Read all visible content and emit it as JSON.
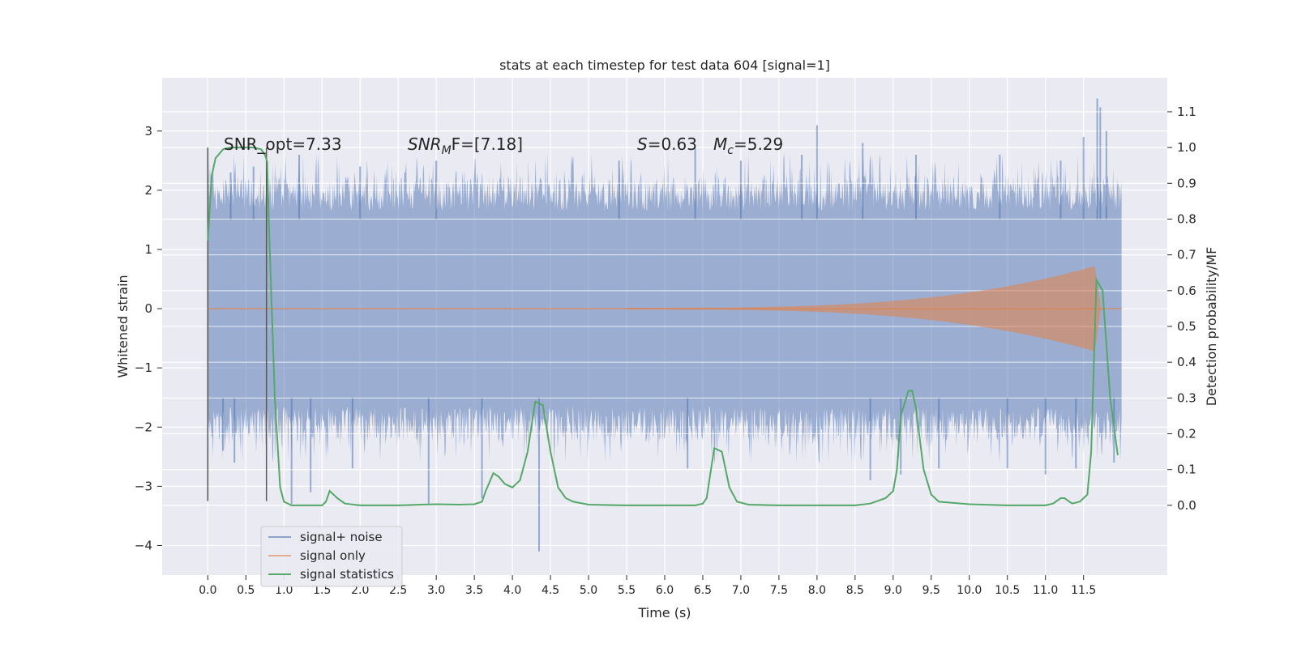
{
  "chart_data": {
    "type": "line",
    "title": "stats at each timestep for test data 604 [signal=1]",
    "xlabel": "Time (s)",
    "ylabel_left": "Whitened strain",
    "ylabel_right": "Detection probability/MF",
    "xlim": [
      -0.6,
      12.6
    ],
    "ylim_left": [
      -4.5,
      3.9
    ],
    "ylim_right": [
      -0.195,
      1.195
    ],
    "x_ticks": [
      "0.0",
      "0.5",
      "1.0",
      "1.5",
      "2.0",
      "2.5",
      "3.0",
      "3.5",
      "4.0",
      "4.5",
      "5.0",
      "5.5",
      "6.0",
      "6.5",
      "7.0",
      "7.5",
      "8.0",
      "8.5",
      "9.0",
      "9.5",
      "10.0",
      "10.5",
      "11.0",
      "11.5"
    ],
    "y_ticks_left": [
      "3",
      "2",
      "1",
      "0",
      "−1",
      "−2",
      "−3",
      "−4"
    ],
    "y_ticks_right": [
      "1.1",
      "1.0",
      "0.9",
      "0.8",
      "0.7",
      "0.6",
      "0.5",
      "0.4",
      "0.3",
      "0.2",
      "0.1",
      "0.0"
    ],
    "grid": true,
    "legend_position": "lower-left",
    "annotations": {
      "snr_opt": "SNR_opt=7.33",
      "snr_mf_sym": "SNR",
      "snr_mf_sub": "M",
      "snr_mf_tail": "F=[7.18]",
      "s_sym": "S",
      "s_val": "=0.63",
      "mc_sym": "M",
      "mc_sub": "c",
      "mc_val": "=5.29"
    },
    "window_markers_x": [
      0.0,
      0.77
    ],
    "series": [
      {
        "name": "signal+ noise",
        "color": "#4c72b0",
        "style": "noise band",
        "duration": 12.0,
        "typical_range": [
          -1.5,
          1.5
        ],
        "upper_spikes": [
          [
            0.3,
            2.3
          ],
          [
            0.6,
            2.4
          ],
          [
            1.2,
            2.6
          ],
          [
            2.0,
            2.4
          ],
          [
            3.0,
            2.5
          ],
          [
            5.4,
            2.5
          ],
          [
            6.4,
            2.7
          ],
          [
            7.0,
            2.5
          ],
          [
            7.8,
            2.6
          ],
          [
            8.0,
            3.1
          ],
          [
            8.6,
            2.8
          ],
          [
            9.3,
            2.6
          ],
          [
            10.4,
            2.6
          ],
          [
            11.2,
            2.5
          ],
          [
            11.5,
            2.9
          ],
          [
            11.68,
            3.55
          ],
          [
            11.72,
            3.4
          ],
          [
            11.8,
            3.0
          ]
        ],
        "lower_spikes": [
          [
            0.2,
            -2.4
          ],
          [
            0.35,
            -2.6
          ],
          [
            1.1,
            -3.3
          ],
          [
            1.35,
            -3.1
          ],
          [
            1.9,
            -2.7
          ],
          [
            2.9,
            -3.3
          ],
          [
            3.6,
            -3.2
          ],
          [
            4.35,
            -4.1
          ],
          [
            6.3,
            -2.7
          ],
          [
            8.7,
            -2.9
          ],
          [
            9.1,
            -2.8
          ],
          [
            9.6,
            -2.7
          ],
          [
            10.5,
            -2.7
          ],
          [
            11.0,
            -2.8
          ],
          [
            11.4,
            -2.7
          ],
          [
            11.9,
            -2.6
          ]
        ]
      },
      {
        "name": "signal only",
        "color": "#dd8452",
        "style": "chirp",
        "onset_x": 5.5,
        "peak_x": 11.65,
        "peak_amplitude": 0.72
      },
      {
        "name": "signal statistics",
        "color": "#55a868",
        "axis": "right",
        "x": [
          0.0,
          0.05,
          0.1,
          0.2,
          0.3,
          0.5,
          0.6,
          0.7,
          0.75,
          0.78,
          0.8,
          0.88,
          0.95,
          1.0,
          1.1,
          1.3,
          1.5,
          1.55,
          1.6,
          1.7,
          1.8,
          2.0,
          2.5,
          2.8,
          3.0,
          3.3,
          3.5,
          3.6,
          3.65,
          3.75,
          3.82,
          3.9,
          4.0,
          4.1,
          4.2,
          4.3,
          4.4,
          4.5,
          4.6,
          4.7,
          4.8,
          5.0,
          5.5,
          6.0,
          6.4,
          6.5,
          6.55,
          6.65,
          6.75,
          6.85,
          6.95,
          7.1,
          7.5,
          8.0,
          8.5,
          8.7,
          8.9,
          9.0,
          9.05,
          9.1,
          9.2,
          9.25,
          9.3,
          9.4,
          9.5,
          9.6,
          10.0,
          10.5,
          11.0,
          11.1,
          11.2,
          11.25,
          11.35,
          11.45,
          11.55,
          11.6,
          11.67,
          11.75,
          11.85,
          11.95
        ],
        "y": [
          0.74,
          0.92,
          0.97,
          0.995,
          1.0,
          1.0,
          1.0,
          0.995,
          0.98,
          0.96,
          0.8,
          0.3,
          0.05,
          0.01,
          0.0,
          0.0,
          0.0,
          0.01,
          0.04,
          0.02,
          0.005,
          0.0,
          0.0,
          0.002,
          0.003,
          0.002,
          0.003,
          0.01,
          0.04,
          0.09,
          0.08,
          0.06,
          0.05,
          0.07,
          0.15,
          0.29,
          0.28,
          0.15,
          0.05,
          0.02,
          0.01,
          0.002,
          0.0,
          0.0,
          0.0,
          0.005,
          0.02,
          0.16,
          0.15,
          0.05,
          0.01,
          0.002,
          0.0,
          0.0,
          0.0,
          0.005,
          0.02,
          0.04,
          0.1,
          0.25,
          0.32,
          0.32,
          0.27,
          0.1,
          0.03,
          0.01,
          0.003,
          0.0,
          0.0,
          0.005,
          0.02,
          0.02,
          0.005,
          0.01,
          0.03,
          0.15,
          0.63,
          0.6,
          0.3,
          0.14
        ]
      }
    ]
  }
}
